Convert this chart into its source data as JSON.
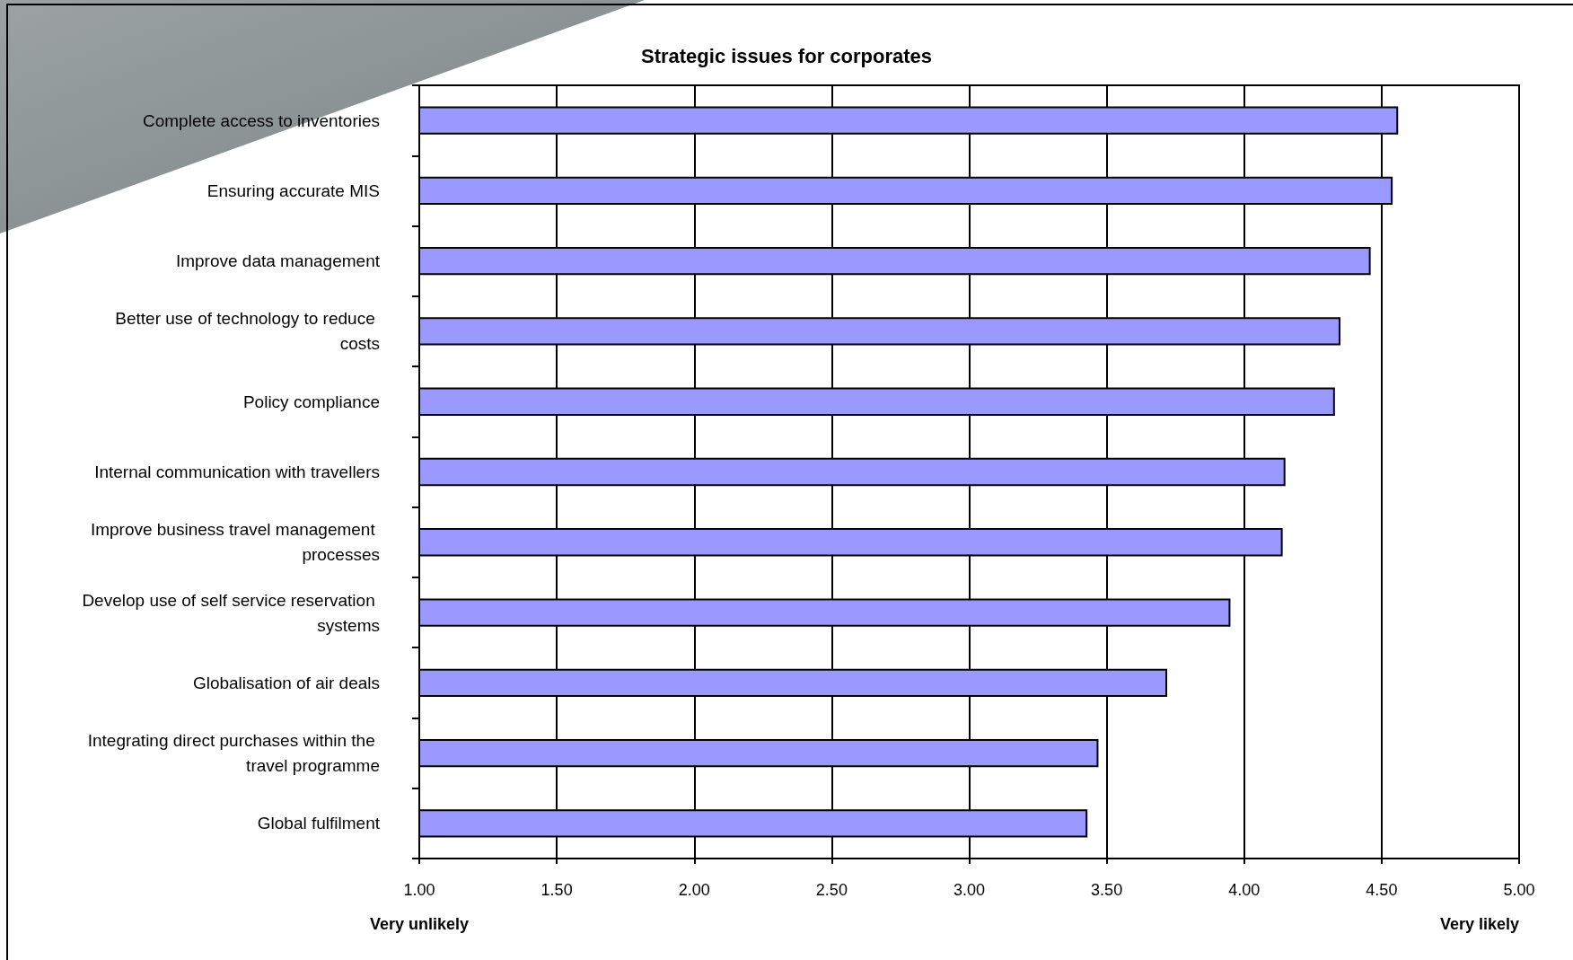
{
  "chart_data": {
    "type": "bar",
    "orientation": "horizontal",
    "title": "Strategic issues for corporates",
    "categories": [
      "Complete access to inventories",
      "Ensuring accurate MIS",
      "Improve data management",
      "Better use of technology to reduce costs",
      "Policy compliance",
      "Internal communication with travellers",
      "Improve business travel management processes",
      "Develop use of self service reservation systems",
      "Globalisation of air deals",
      "Integrating direct purchases within the travel programme",
      "Global fulfilment"
    ],
    "values": [
      4.56,
      4.54,
      4.46,
      4.35,
      4.33,
      4.15,
      4.14,
      3.95,
      3.72,
      3.47,
      3.43
    ],
    "color": "#9999ff",
    "xlim": [
      1,
      5
    ],
    "xticks": [
      {
        "value": 1,
        "label": "1.00"
      },
      {
        "value": 1.5,
        "label": "1.50"
      },
      {
        "value": 2,
        "label": "2.00"
      },
      {
        "value": 2.5,
        "label": "2.50"
      },
      {
        "value": 3,
        "label": "3.00"
      },
      {
        "value": 3.5,
        "label": "3.50"
      },
      {
        "value": 4,
        "label": "4.00"
      },
      {
        "value": 4.5,
        "label": "4.50"
      },
      {
        "value": 5,
        "label": "5.00"
      }
    ],
    "grid": "x",
    "annotations": [
      "Very unlikely",
      "Very likely"
    ]
  }
}
